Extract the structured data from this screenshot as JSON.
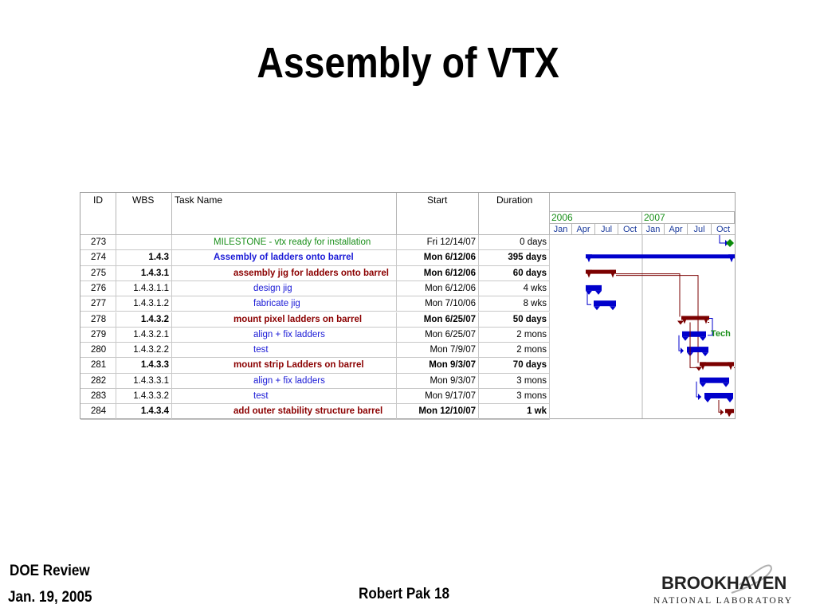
{
  "title": "Assembly of VTX",
  "table": {
    "headers": {
      "id": "ID",
      "wbs": "WBS",
      "name": "Task Name",
      "start": "Start",
      "duration": "Duration"
    },
    "years": [
      "2006",
      "2007"
    ],
    "months": [
      "Jan",
      "Apr",
      "Jul",
      "Oct",
      "Jan",
      "Apr",
      "Jul",
      "Oct"
    ],
    "rows": [
      {
        "id": "273",
        "wbs": "",
        "name": "MILESTONE - vtx ready for installation",
        "start": "Fri 12/14/07",
        "duration": "0 days"
      },
      {
        "id": "274",
        "wbs": "1.4.3",
        "name": "Assembly of ladders onto barrel",
        "start": "Mon 6/12/06",
        "duration": "395 days"
      },
      {
        "id": "275",
        "wbs": "1.4.3.1",
        "name": "assembly jig for ladders onto barrel",
        "start": "Mon 6/12/06",
        "duration": "60 days"
      },
      {
        "id": "276",
        "wbs": "1.4.3.1.1",
        "name": "design jig",
        "start": "Mon 6/12/06",
        "duration": "4 wks"
      },
      {
        "id": "277",
        "wbs": "1.4.3.1.2",
        "name": "fabricate jig",
        "start": "Mon 7/10/06",
        "duration": "8 wks"
      },
      {
        "id": "278",
        "wbs": "1.4.3.2",
        "name": "mount pixel ladders on barrel",
        "start": "Mon 6/25/07",
        "duration": "50 days"
      },
      {
        "id": "279",
        "wbs": "1.4.3.2.1",
        "name": "align + fix ladders",
        "start": "Mon 6/25/07",
        "duration": "2 mons"
      },
      {
        "id": "280",
        "wbs": "1.4.3.2.2",
        "name": "test",
        "start": "Mon 7/9/07",
        "duration": "2 mons"
      },
      {
        "id": "281",
        "wbs": "1.4.3.3",
        "name": "mount strip Ladders on barrel",
        "start": "Mon 9/3/07",
        "duration": "70 days"
      },
      {
        "id": "282",
        "wbs": "1.4.3.3.1",
        "name": "align + fix ladders",
        "start": "Mon 9/3/07",
        "duration": "3 mons"
      },
      {
        "id": "283",
        "wbs": "1.4.3.3.2",
        "name": "test",
        "start": "Mon 9/17/07",
        "duration": "3 mons"
      },
      {
        "id": "284",
        "wbs": "1.4.3.4",
        "name": "add outer stability structure barrel",
        "start": "Mon 12/10/07",
        "duration": "1 wk"
      }
    ],
    "resource_label": "Tech"
  },
  "footer": {
    "left_line1": "DOE Review",
    "left_line2": "Jan. 19, 2005",
    "center": "Robert Pak 18",
    "logo_top": "BROOKHAVEN",
    "logo_bottom": "NATIONAL LABORATORY"
  },
  "colors": {
    "summary_red": "#7b0000",
    "task_blue": "#0000cc",
    "milestone_green": "#0a8a0a"
  }
}
